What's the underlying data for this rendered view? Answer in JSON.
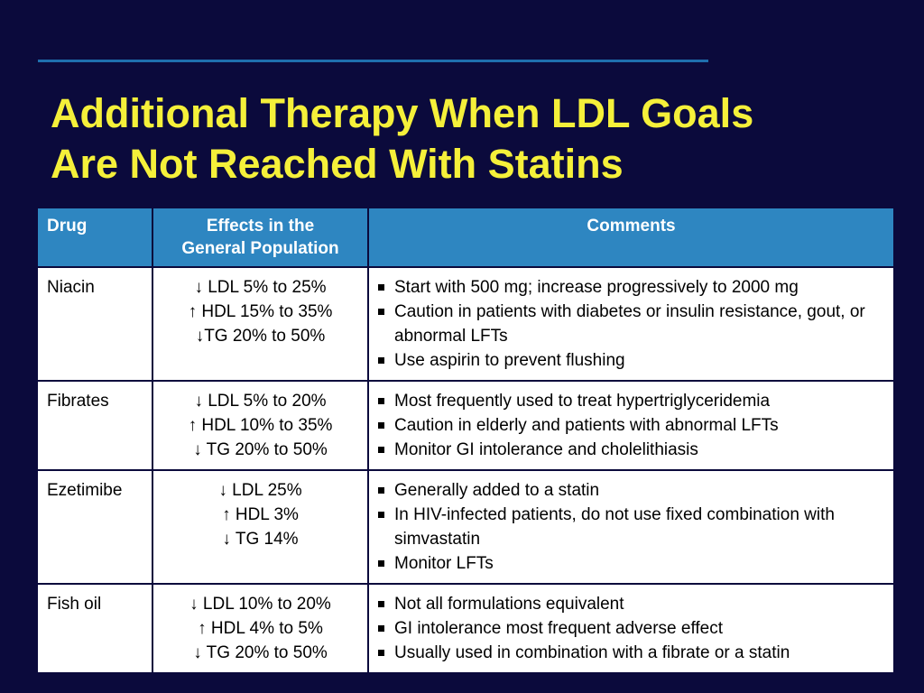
{
  "slide": {
    "title_lines": [
      "Additional Therapy When LDL Goals",
      "Are Not Reached With Statins"
    ],
    "accent_color": "#f5f03a",
    "background_color": "#0b0a3c",
    "header_color": "#2e86c1"
  },
  "table": {
    "headers": {
      "drug": "Drug",
      "effects": [
        "Effects in the",
        "General Population"
      ],
      "comments": "Comments"
    },
    "rows": [
      {
        "drug": "Niacin",
        "effects": [
          "↓ LDL 5% to 25%",
          "↑ HDL 15% to 35%",
          "↓TG 20% to 50%"
        ],
        "comments": [
          "Start with 500 mg; increase progressively to 2000 mg",
          "Caution in patients with diabetes or insulin resistance, gout, or abnormal LFTs",
          "Use aspirin to prevent flushing"
        ]
      },
      {
        "drug": "Fibrates",
        "effects": [
          "↓ LDL 5% to 20%",
          "↑ HDL 10% to 35%",
          "↓ TG 20% to 50%"
        ],
        "comments": [
          "Most frequently used to treat hypertriglyceridemia",
          "Caution in elderly and patients with abnormal LFTs",
          "Monitor GI intolerance and cholelithiasis"
        ]
      },
      {
        "drug": "Ezetimibe",
        "effects": [
          "↓ LDL 25%",
          "↑ HDL 3%",
          "↓ TG 14%"
        ],
        "comments": [
          "Generally added to a statin",
          "In HIV-infected patients, do not use fixed combination with simvastatin",
          "Monitor LFTs"
        ]
      },
      {
        "drug": "Fish oil",
        "effects": [
          "↓ LDL 10% to 20%",
          "↑ HDL 4% to 5%",
          "↓ TG 20% to 50%"
        ],
        "comments": [
          "Not all formulations equivalent",
          "GI intolerance most frequent adverse effect",
          "Usually used in combination with a fibrate or a statin"
        ]
      }
    ]
  }
}
